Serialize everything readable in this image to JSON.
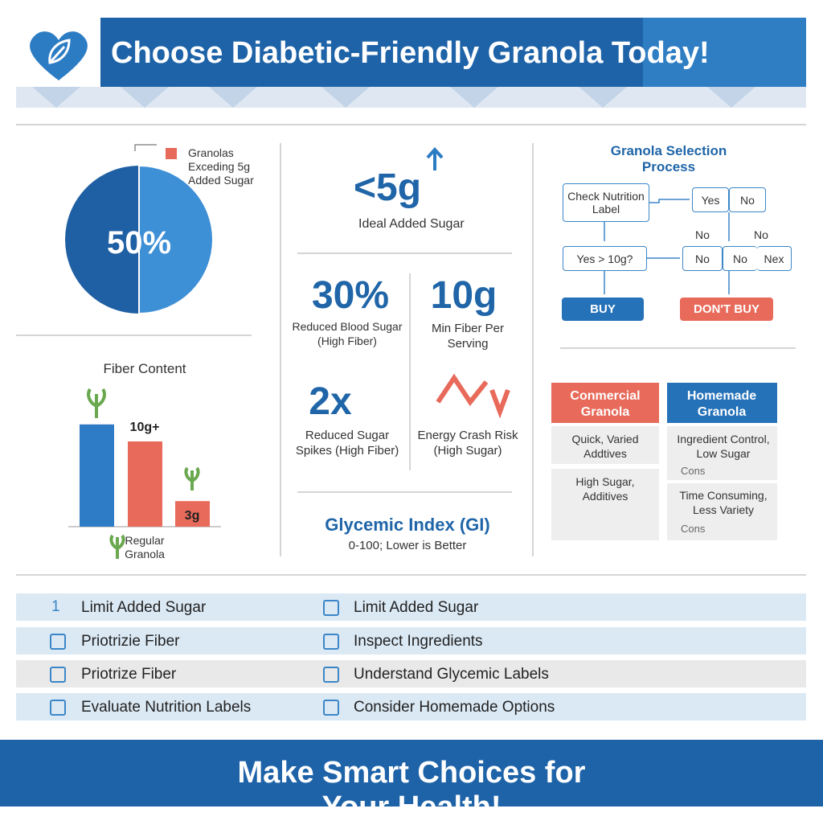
{
  "header": {
    "title": "Choose Diabetic-Friendly Granola Today!"
  },
  "pie": {
    "value": 50,
    "label": "50%",
    "legend": "Granolas Exceding 5g Added Sugar"
  },
  "fiber": {
    "title": "Fiber Content",
    "bars": [
      {
        "value": 12
      },
      {
        "value": 10,
        "label": "10g+"
      },
      {
        "value": 3,
        "label": "3g"
      }
    ],
    "x_label": "Regular Granola"
  },
  "stats": {
    "headline": "<5g",
    "headline_label": "Ideal Added Sugar",
    "items": [
      {
        "value": "30%",
        "label": "Reduced Blood Sugar (High Fiber)"
      },
      {
        "value": "10g",
        "label": "Min Fiber Per Serving"
      },
      {
        "value": "2x",
        "label": "Reduced Sugar Spikes (High Fiber)"
      },
      {
        "label": "Energy Crash Risk (High Sugar)"
      }
    ],
    "gi_title": "Glycemic Index (GI)",
    "gi_note": "0-100; Lower is Better"
  },
  "flow": {
    "title": "Granola Selection Process",
    "nodes": [
      "Check Nutrition Label",
      "Yes",
      "No",
      "No",
      "No",
      "Yes > 10g?",
      "No",
      "No",
      "Nex",
      "BUY",
      "DON'T BUY"
    ]
  },
  "compare": {
    "columns": [
      {
        "title": "Conmercial Granola",
        "items": [
          {
            "text": "Quick, Varied Addtives"
          },
          {
            "text": "High Sugar, Additives"
          }
        ]
      },
      {
        "title": "Homemade Granola",
        "items": [
          {
            "text": "Ingredient Control, Low Sugar",
            "note": "Cons"
          },
          {
            "text": "Time Consuming, Less Variety",
            "note": "Cons"
          }
        ]
      }
    ]
  },
  "tips": {
    "marker": "1",
    "rows": [
      [
        "Limit Added Sugar",
        "Limit Added Sugar"
      ],
      [
        "Priotrizie Fiber",
        "Inspect Ingredients"
      ],
      [
        "Priotrize Fiber",
        "Understand Glycemic Labels"
      ],
      [
        "Evaluate Nutrition Labels",
        "Consider Homemade Options"
      ]
    ]
  },
  "footer": {
    "text": "Make Smart Choices for Your Health!"
  }
}
